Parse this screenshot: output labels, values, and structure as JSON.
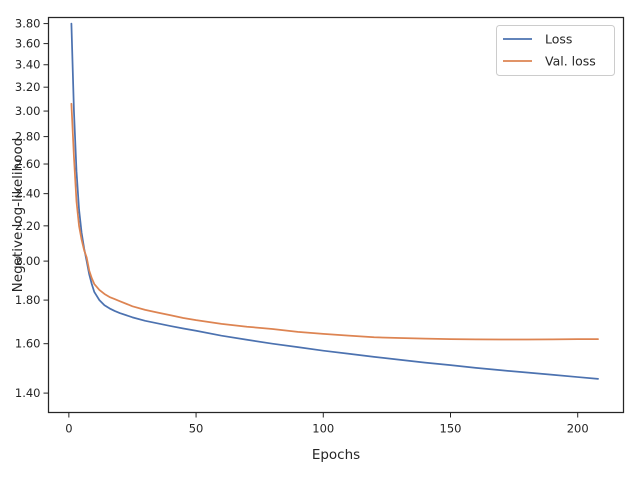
{
  "chart_data": {
    "type": "line",
    "title": "",
    "xlabel": "Epochs",
    "ylabel": "Negative log-likelihood",
    "xlim": [
      -8,
      218
    ],
    "ylim": [
      1.3285,
      3.863
    ],
    "yscale": "log",
    "grid": false,
    "legend_position": "top-right",
    "x_ticks": [
      0,
      50,
      100,
      150,
      200
    ],
    "x_tick_labels": [
      "0",
      "50",
      "100",
      "150",
      "200"
    ],
    "y_ticks": [
      1.4,
      1.6,
      1.8,
      2.0,
      2.2,
      2.4,
      2.6,
      2.8,
      3.0,
      3.2,
      3.4,
      3.6,
      3.8
    ],
    "y_tick_labels": [
      "1.40",
      "1.60",
      "1.80",
      "2.00",
      "2.20",
      "2.40",
      "2.60",
      "2.80",
      "3.00",
      "3.20",
      "3.40",
      "3.60",
      "3.80"
    ],
    "series": [
      {
        "name": "Loss",
        "color": "#4c72b0",
        "x": [
          1,
          2,
          3,
          4,
          5,
          6,
          7,
          8,
          9,
          10,
          12,
          14,
          16,
          18,
          20,
          25,
          30,
          35,
          40,
          45,
          50,
          60,
          70,
          80,
          90,
          100,
          110,
          120,
          130,
          140,
          150,
          160,
          170,
          180,
          190,
          200,
          208
        ],
        "y": [
          3.8,
          3.0,
          2.55,
          2.3,
          2.16,
          2.07,
          2.0,
          1.93,
          1.88,
          1.84,
          1.8,
          1.775,
          1.76,
          1.748,
          1.738,
          1.718,
          1.702,
          1.69,
          1.678,
          1.667,
          1.657,
          1.635,
          1.617,
          1.6,
          1.585,
          1.57,
          1.557,
          1.544,
          1.532,
          1.52,
          1.51,
          1.499,
          1.489,
          1.48,
          1.471,
          1.462,
          1.455
        ]
      },
      {
        "name": "Val. loss",
        "color": "#dd8452",
        "x": [
          1,
          2,
          3,
          4,
          5,
          6,
          7,
          8,
          9,
          10,
          12,
          14,
          16,
          18,
          20,
          25,
          30,
          35,
          40,
          45,
          50,
          60,
          70,
          80,
          90,
          100,
          110,
          120,
          130,
          140,
          150,
          160,
          170,
          180,
          190,
          200,
          208
        ],
        "y": [
          3.06,
          2.65,
          2.35,
          2.2,
          2.12,
          2.06,
          2.02,
          1.95,
          1.91,
          1.88,
          1.85,
          1.83,
          1.815,
          1.805,
          1.795,
          1.77,
          1.753,
          1.74,
          1.728,
          1.715,
          1.705,
          1.688,
          1.675,
          1.665,
          1.652,
          1.643,
          1.635,
          1.628,
          1.625,
          1.622,
          1.62,
          1.619,
          1.618,
          1.618,
          1.619,
          1.62,
          1.62
        ]
      }
    ]
  }
}
